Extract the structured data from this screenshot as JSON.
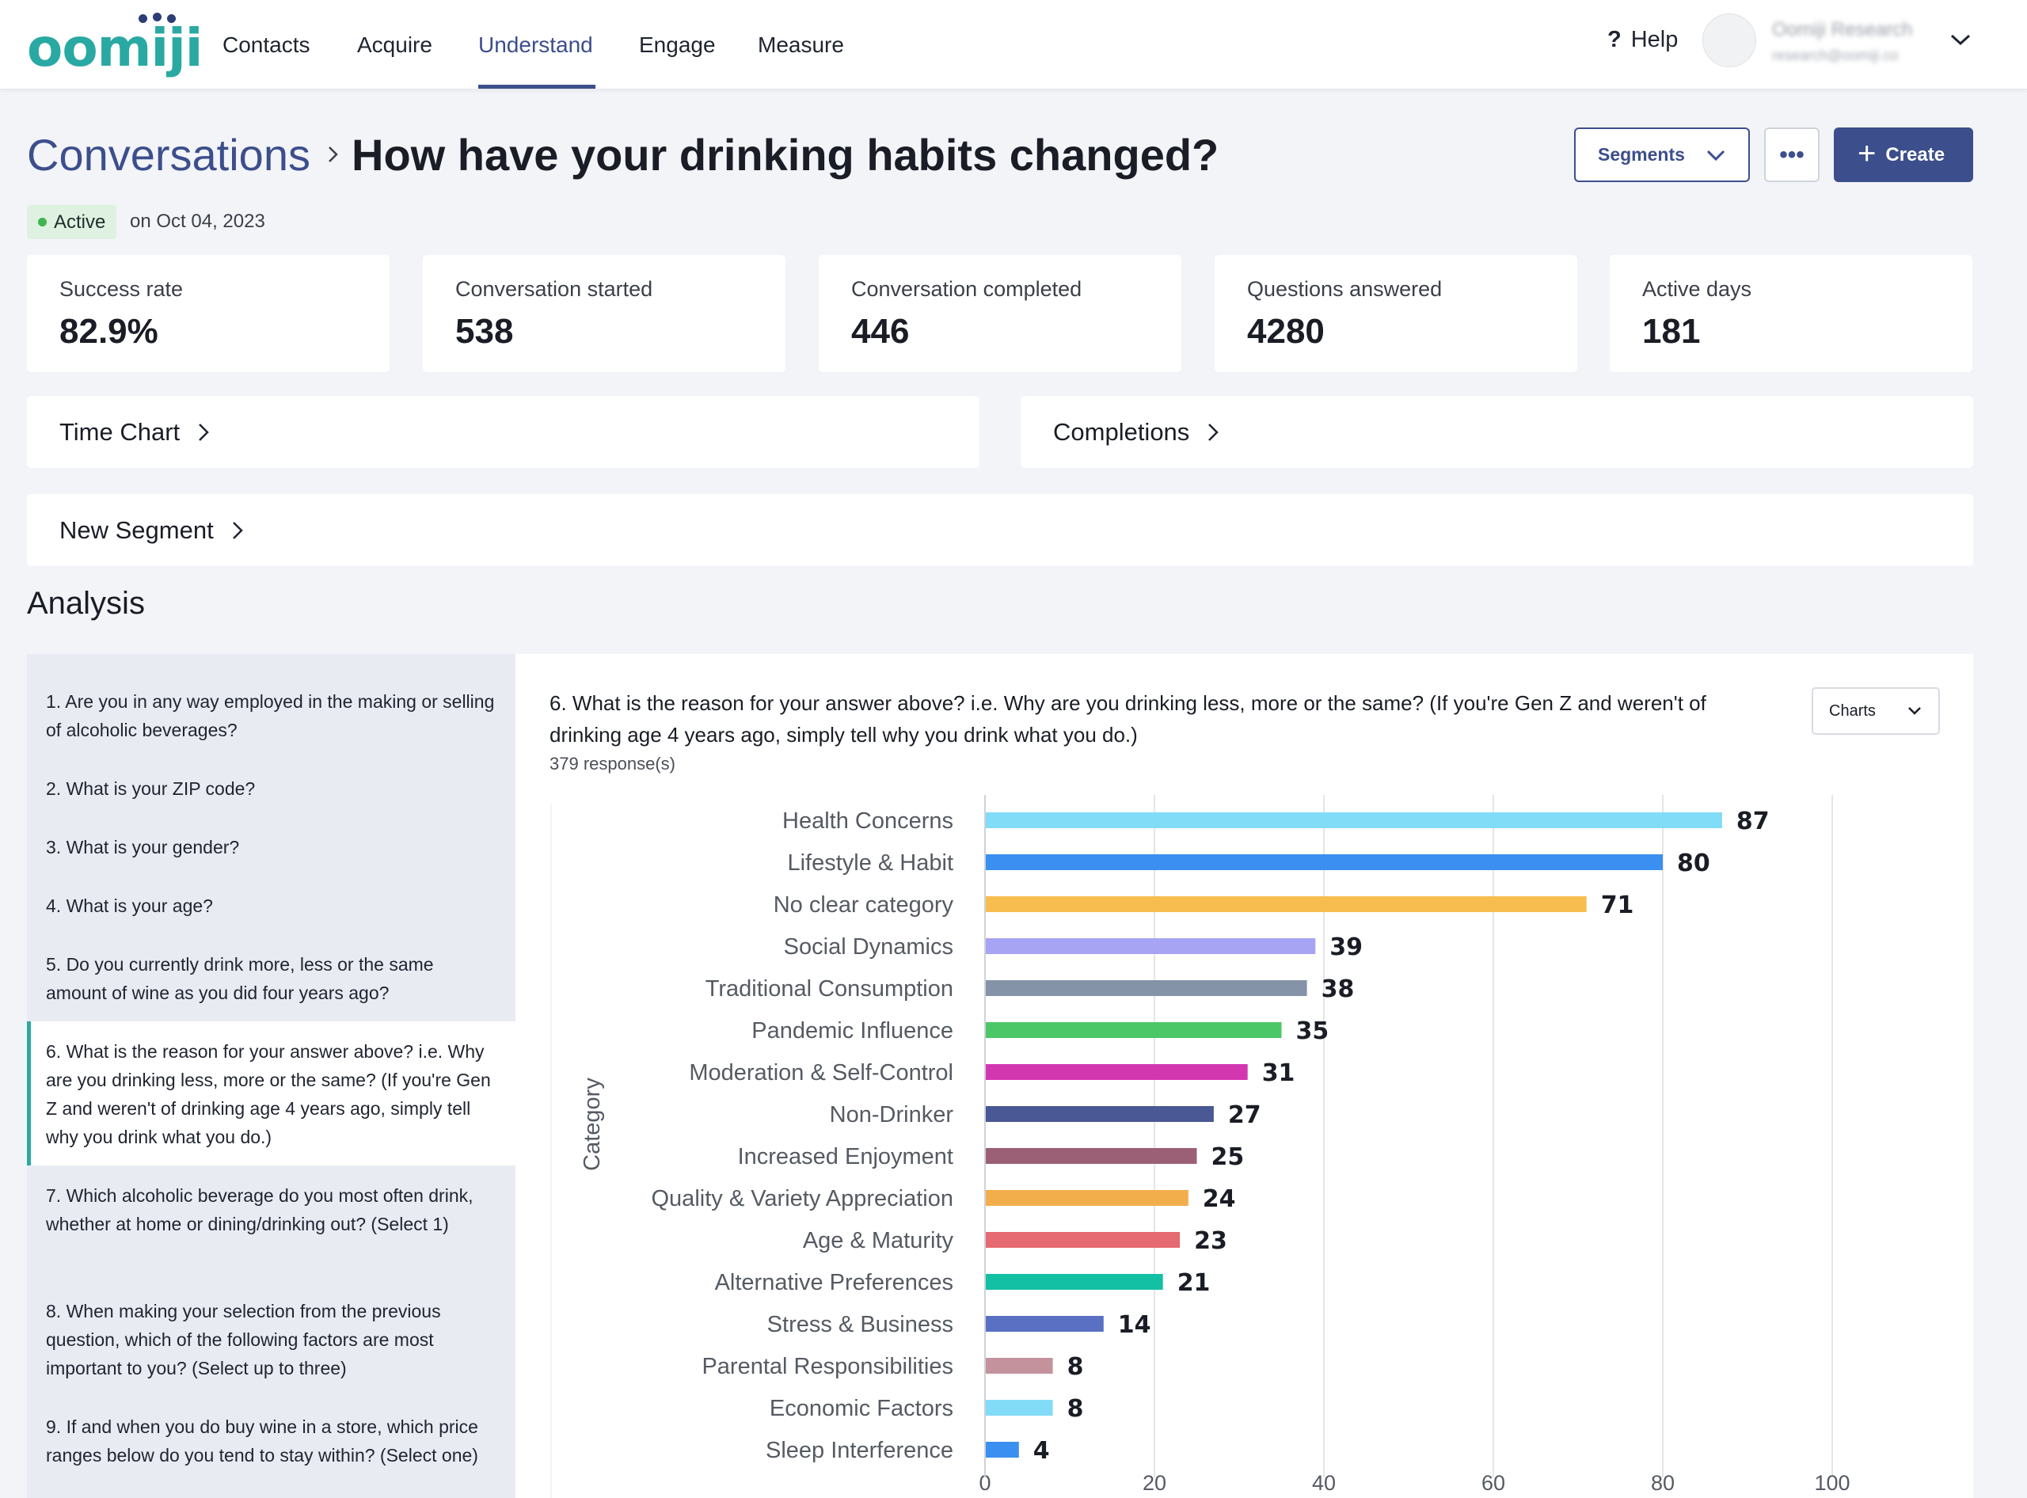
{
  "nav": {
    "logo": "oomiji",
    "items": [
      {
        "label": "Contacts"
      },
      {
        "label": "Acquire"
      },
      {
        "label": "Understand"
      },
      {
        "label": "Engage"
      },
      {
        "label": "Measure"
      }
    ],
    "active": "Understand",
    "help_label": "Help",
    "user_name": "Oomiji Research",
    "user_email": "research@oomiji.co"
  },
  "header": {
    "breadcrumb": "Conversations",
    "title": "How have your drinking habits changed?",
    "segments_label": "Segments",
    "more_label": "•••",
    "create_label": "Create",
    "status": "Active",
    "status_date": "on Oct 04, 2023"
  },
  "stats": [
    {
      "label": "Success rate",
      "value": "82.9%"
    },
    {
      "label": "Conversation started",
      "value": "538"
    },
    {
      "label": "Conversation completed",
      "value": "446"
    },
    {
      "label": "Questions answered",
      "value": "4280"
    },
    {
      "label": "Active days",
      "value": "181"
    }
  ],
  "panels": {
    "time_chart": "Time Chart",
    "completions": "Completions",
    "new_segment": "New Segment"
  },
  "analysis": {
    "title": "Analysis",
    "questions": [
      "1. Are you in any way employed in the making or selling of alcoholic beverages?",
      "2. What is your ZIP code?",
      "3. What is your gender?",
      "4. What is your age?",
      "5. Do you currently drink more, less or the same amount of wine as you did four years ago?",
      "6. What is the reason for your answer above? i.e. Why are you drinking less, more or the same? (If you're Gen Z and weren't of drinking age 4 years ago, simply tell why you drink what you do.)",
      "7. Which alcoholic beverage do you most often drink, whether at home or dining/drinking out? (Select 1)",
      "8. When making your selection from the previous question, which of the following factors are most important to you? (Select up to three)",
      "9. If and when you do buy wine in a store, which price ranges below do you tend to stay within? (Select one)"
    ],
    "active_index": 5
  },
  "chart_panel": {
    "question": "6. What is the reason for your answer above? i.e. Why are you drinking less, more or the same? (If you're Gen Z and weren't of drinking age 4 years ago, simply tell why you drink what you do.)",
    "responses": "379 response(s)",
    "charts_label": "Charts"
  },
  "chart_data": {
    "type": "bar",
    "orientation": "horizontal",
    "ylabel": "Category",
    "xlim": [
      0,
      100
    ],
    "xticks": [
      0,
      20,
      40,
      60,
      80,
      100
    ],
    "grid": true,
    "categories": [
      "Health Concerns",
      "Lifestyle & Habit",
      "No clear category",
      "Social Dynamics",
      "Traditional Consumption",
      "Pandemic Influence",
      "Moderation & Self-Control",
      "Non-Drinker",
      "Increased Enjoyment",
      "Quality & Variety Appreciation",
      "Age & Maturity",
      "Alternative Preferences",
      "Stress & Business",
      "Parental Responsibilities",
      "Economic Factors",
      "Sleep Interference"
    ],
    "values": [
      87,
      80,
      71,
      39,
      38,
      35,
      31,
      27,
      25,
      24,
      23,
      21,
      14,
      8,
      8,
      4
    ],
    "colors": [
      "#80dcf7",
      "#3b8ff0",
      "#f7bd4e",
      "#a7a4f4",
      "#8593a9",
      "#4cc768",
      "#d337b0",
      "#4a5895",
      "#9b6075",
      "#f3ae4c",
      "#e66a72",
      "#14c0a4",
      "#5a70c3",
      "#c4929d",
      "#82dcf7",
      "#3b8ff0"
    ]
  }
}
